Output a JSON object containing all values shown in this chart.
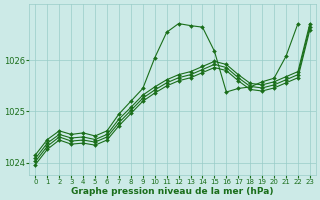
{
  "background_color": "#cceae7",
  "plot_bg_color": "#cceae7",
  "grid_color": "#99ccc8",
  "line_color": "#1a6e1a",
  "marker_color": "#1a6e1a",
  "xlabel": "Graphe pression niveau de la mer (hPa)",
  "ylim": [
    1023.75,
    1027.1
  ],
  "xlim": [
    -0.5,
    23.5
  ],
  "yticks": [
    1024,
    1025,
    1026
  ],
  "xticks": [
    0,
    1,
    2,
    3,
    4,
    5,
    6,
    7,
    8,
    9,
    10,
    11,
    12,
    13,
    14,
    15,
    16,
    17,
    18,
    19,
    20,
    21,
    22,
    23
  ],
  "series": {
    "peaked": {
      "x": [
        0,
        1,
        2,
        3,
        4,
        5,
        6,
        7,
        8,
        9,
        10,
        11,
        12,
        13,
        14,
        15,
        16,
        17,
        18,
        19,
        20,
        21,
        22
      ],
      "y": [
        1024.15,
        1024.45,
        1024.62,
        1024.55,
        1024.58,
        1024.52,
        1024.62,
        1024.95,
        1025.2,
        1025.45,
        1026.05,
        1026.55,
        1026.72,
        1026.68,
        1026.65,
        1026.18,
        1025.38,
        1025.45,
        1025.48,
        1025.58,
        1025.65,
        1026.08,
        1026.72
      ]
    },
    "flat1": {
      "x": [
        0,
        1,
        2,
        3,
        4,
        5,
        6,
        7,
        8,
        9,
        10,
        11,
        12,
        13,
        14,
        15,
        16,
        17,
        18,
        19,
        20,
        21,
        22,
        23
      ],
      "y": [
        1024.08,
        1024.38,
        1024.55,
        1024.48,
        1024.5,
        1024.45,
        1024.55,
        1024.85,
        1025.08,
        1025.32,
        1025.48,
        1025.62,
        1025.72,
        1025.78,
        1025.88,
        1025.98,
        1025.92,
        1025.72,
        1025.55,
        1025.52,
        1025.58,
        1025.68,
        1025.78,
        1026.72
      ]
    },
    "flat2": {
      "x": [
        0,
        1,
        2,
        3,
        4,
        5,
        6,
        7,
        8,
        9,
        10,
        11,
        12,
        13,
        14,
        15,
        16,
        17,
        18,
        19,
        20,
        21,
        22,
        23
      ],
      "y": [
        1024.02,
        1024.32,
        1024.5,
        1024.42,
        1024.44,
        1024.4,
        1024.5,
        1024.78,
        1025.02,
        1025.26,
        1025.42,
        1025.56,
        1025.66,
        1025.72,
        1025.82,
        1025.92,
        1025.86,
        1025.66,
        1025.49,
        1025.46,
        1025.52,
        1025.62,
        1025.72,
        1026.66
      ]
    },
    "flat3": {
      "x": [
        0,
        1,
        2,
        3,
        4,
        5,
        6,
        7,
        8,
        9,
        10,
        11,
        12,
        13,
        14,
        15,
        16,
        17,
        18,
        19,
        20,
        21,
        22,
        23
      ],
      "y": [
        1023.96,
        1024.26,
        1024.44,
        1024.36,
        1024.38,
        1024.34,
        1024.44,
        1024.72,
        1024.96,
        1025.2,
        1025.36,
        1025.5,
        1025.6,
        1025.66,
        1025.76,
        1025.86,
        1025.8,
        1025.6,
        1025.43,
        1025.4,
        1025.46,
        1025.56,
        1025.66,
        1026.6
      ]
    }
  }
}
